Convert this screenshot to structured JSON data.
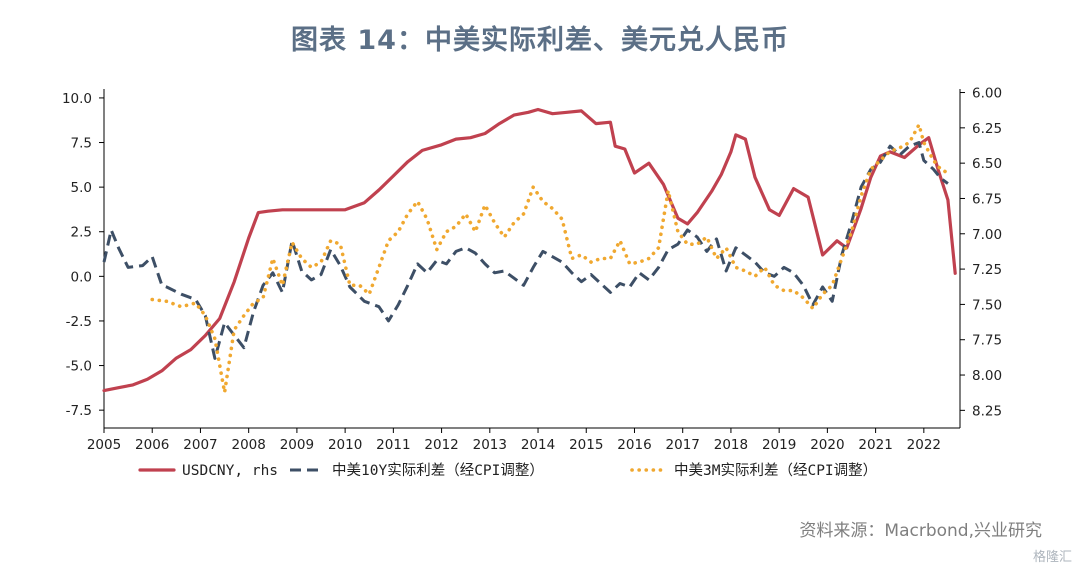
{
  "title": "图表 14：中美实际利差、美元兑人民币",
  "source": "资料来源：Macrbond,兴业研究",
  "watermark": "格隆汇",
  "chart_data": {
    "type": "line",
    "x_ticks": [
      "2005",
      "2006",
      "2007",
      "2008",
      "2009",
      "2010",
      "2011",
      "2012",
      "2013",
      "2014",
      "2015",
      "2016",
      "2017",
      "2018",
      "2019",
      "2020",
      "2021",
      "2022"
    ],
    "x_range": [
      2005.0,
      2022.75
    ],
    "y_left": {
      "ylim": [
        -8.5,
        10.5
      ],
      "ticks": [
        "10.0",
        "7.5",
        "5.0",
        "2.5",
        "0.0",
        "-2.5",
        "-5.0",
        "-7.5"
      ],
      "tick_values": [
        10.0,
        7.5,
        5.0,
        2.5,
        0.0,
        -2.5,
        -5.0,
        -7.5
      ]
    },
    "y_right": {
      "ylim": [
        8.375,
        5.975
      ],
      "ticks": [
        "6.00",
        "6.25",
        "6.50",
        "6.75",
        "7.00",
        "7.25",
        "7.50",
        "7.75",
        "8.00",
        "8.25"
      ],
      "tick_values": [
        6.0,
        6.25,
        6.5,
        6.75,
        7.0,
        7.25,
        7.5,
        7.75,
        8.0,
        8.25
      ]
    },
    "legend_position": "bottom",
    "colors": {
      "usdcny": "#c0414f",
      "spread10y": "#3d4f66",
      "spread3m": "#f0a830",
      "axis": "#000000"
    },
    "series": [
      {
        "name": "USDCNY, rhs",
        "axis": "right",
        "style": "solid",
        "x": [
          2005.0,
          2005.3,
          2005.6,
          2005.9,
          2006.2,
          2006.5,
          2006.8,
          2007.1,
          2007.4,
          2007.7,
          2008.0,
          2008.2,
          2008.4,
          2008.7,
          2009.0,
          2009.5,
          2010.0,
          2010.4,
          2010.7,
          2011.0,
          2011.3,
          2011.6,
          2012.0,
          2012.3,
          2012.6,
          2012.9,
          2013.2,
          2013.5,
          2013.8,
          2014.0,
          2014.3,
          2014.6,
          2014.9,
          2015.2,
          2015.5,
          2015.6,
          2015.8,
          2016.0,
          2016.3,
          2016.6,
          2016.9,
          2017.1,
          2017.3,
          2017.6,
          2017.8,
          2018.0,
          2018.1,
          2018.3,
          2018.5,
          2018.8,
          2019.0,
          2019.3,
          2019.6,
          2019.9,
          2020.2,
          2020.4,
          2020.7,
          2020.9,
          2021.1,
          2021.3,
          2021.6,
          2021.9,
          2022.1,
          2022.3,
          2022.5,
          2022.65
        ],
        "y": [
          8.11,
          8.09,
          8.07,
          8.03,
          7.97,
          7.88,
          7.82,
          7.72,
          7.6,
          7.34,
          7.03,
          6.85,
          6.84,
          6.83,
          6.83,
          6.83,
          6.83,
          6.78,
          6.69,
          6.59,
          6.49,
          6.41,
          6.37,
          6.33,
          6.32,
          6.29,
          6.22,
          6.16,
          6.14,
          6.12,
          6.15,
          6.14,
          6.13,
          6.22,
          6.21,
          6.38,
          6.4,
          6.57,
          6.5,
          6.65,
          6.89,
          6.93,
          6.85,
          6.7,
          6.58,
          6.42,
          6.3,
          6.33,
          6.6,
          6.83,
          6.87,
          6.68,
          6.74,
          7.15,
          7.05,
          7.1,
          6.82,
          6.6,
          6.45,
          6.42,
          6.46,
          6.37,
          6.32,
          6.55,
          6.76,
          7.28
        ]
      },
      {
        "name": "中美10Y实际利差（经CPI调整）",
        "axis": "left",
        "style": "dash",
        "x": [
          2005.0,
          2005.15,
          2005.3,
          2005.5,
          2005.8,
          2006.0,
          2006.2,
          2006.3,
          2006.6,
          2006.9,
          2007.1,
          2007.3,
          2007.5,
          2007.7,
          2007.9,
          2008.1,
          2008.3,
          2008.5,
          2008.7,
          2008.9,
          2009.1,
          2009.3,
          2009.5,
          2009.7,
          2009.9,
          2010.1,
          2010.4,
          2010.7,
          2010.9,
          2011.1,
          2011.3,
          2011.5,
          2011.7,
          2011.9,
          2012.1,
          2012.3,
          2012.5,
          2012.7,
          2012.9,
          2013.1,
          2013.3,
          2013.5,
          2013.7,
          2013.9,
          2014.1,
          2014.3,
          2014.5,
          2014.7,
          2014.9,
          2015.1,
          2015.3,
          2015.5,
          2015.7,
          2015.9,
          2016.1,
          2016.3,
          2016.5,
          2016.7,
          2016.9,
          2017.1,
          2017.3,
          2017.5,
          2017.7,
          2017.9,
          2018.1,
          2018.3,
          2018.5,
          2018.7,
          2018.9,
          2019.1,
          2019.3,
          2019.5,
          2019.7,
          2019.9,
          2020.1,
          2020.3,
          2020.5,
          2020.7,
          2020.9,
          2021.1,
          2021.3,
          2021.5,
          2021.7,
          2021.9,
          2022.0,
          2022.2,
          2022.35,
          2022.5
        ],
        "y": [
          0.8,
          2.6,
          1.6,
          0.5,
          0.6,
          1.1,
          -0.5,
          -0.6,
          -1.0,
          -1.3,
          -2.2,
          -4.6,
          -2.6,
          -3.3,
          -4.0,
          -2.0,
          -0.5,
          0.2,
          -0.9,
          2.0,
          0.3,
          -0.2,
          0.1,
          1.5,
          0.6,
          -0.6,
          -1.4,
          -1.7,
          -2.5,
          -1.6,
          -0.5,
          0.7,
          0.2,
          0.9,
          0.7,
          1.4,
          1.6,
          1.3,
          0.7,
          0.2,
          0.3,
          -0.1,
          -0.5,
          0.5,
          1.4,
          1.1,
          0.8,
          0.2,
          -0.3,
          0.1,
          -0.4,
          -0.9,
          -0.4,
          -0.6,
          0.2,
          -0.2,
          0.5,
          1.5,
          1.8,
          2.6,
          2.2,
          1.4,
          2.1,
          0.3,
          1.6,
          1.2,
          0.8,
          0.2,
          0.0,
          0.5,
          0.2,
          -0.5,
          -1.6,
          -0.6,
          -1.4,
          1.2,
          3.0,
          5.0,
          6.0,
          6.4,
          7.3,
          6.8,
          7.3,
          7.5,
          6.5,
          6.0,
          5.5,
          5.2
        ]
      },
      {
        "name": "中美3M实际利差（经CPI调整）",
        "axis": "left",
        "style": "dot",
        "x": [
          2006.0,
          2006.3,
          2006.6,
          2006.9,
          2007.1,
          2007.3,
          2007.5,
          2007.7,
          2007.9,
          2008.1,
          2008.3,
          2008.5,
          2008.7,
          2008.9,
          2009.1,
          2009.3,
          2009.5,
          2009.7,
          2009.9,
          2010.1,
          2010.3,
          2010.5,
          2010.7,
          2010.9,
          2011.1,
          2011.3,
          2011.5,
          2011.7,
          2011.9,
          2012.1,
          2012.3,
          2012.5,
          2012.7,
          2012.9,
          2013.1,
          2013.3,
          2013.5,
          2013.7,
          2013.9,
          2014.1,
          2014.3,
          2014.5,
          2014.7,
          2014.9,
          2015.1,
          2015.3,
          2015.5,
          2015.7,
          2015.9,
          2016.1,
          2016.3,
          2016.5,
          2016.7,
          2016.9,
          2017.1,
          2017.3,
          2017.5,
          2017.7,
          2017.9,
          2018.1,
          2018.3,
          2018.5,
          2018.7,
          2018.9,
          2019.1,
          2019.3,
          2019.5,
          2019.7,
          2019.9,
          2020.1,
          2020.3,
          2020.5,
          2020.7,
          2020.9,
          2021.1,
          2021.3,
          2021.5,
          2021.7,
          2021.9,
          2022.0,
          2022.2,
          2022.35,
          2022.5
        ],
        "y": [
          -1.3,
          -1.4,
          -1.7,
          -1.5,
          -2.2,
          -3.5,
          -6.5,
          -3.0,
          -2.2,
          -1.5,
          -1.2,
          1.0,
          -0.5,
          1.9,
          1.0,
          0.5,
          0.8,
          2.0,
          1.8,
          -0.5,
          -0.5,
          -1.0,
          0.5,
          2.0,
          2.5,
          3.5,
          4.2,
          3.2,
          1.5,
          2.5,
          2.8,
          3.5,
          2.5,
          4.0,
          3.0,
          2.2,
          3.0,
          3.5,
          5.0,
          4.2,
          3.8,
          3.2,
          1.0,
          1.2,
          0.8,
          1.0,
          1.0,
          2.0,
          0.7,
          0.8,
          1.0,
          1.6,
          4.8,
          2.5,
          1.8,
          1.8,
          2.2,
          1.0,
          1.6,
          0.5,
          0.3,
          0.0,
          0.5,
          -0.5,
          -0.8,
          -0.8,
          -1.2,
          -1.8,
          -1.0,
          -0.5,
          1.0,
          2.5,
          4.5,
          6.0,
          6.5,
          7.0,
          7.2,
          7.5,
          8.5,
          7.5,
          6.5,
          6.0,
          5.8
        ]
      }
    ]
  }
}
